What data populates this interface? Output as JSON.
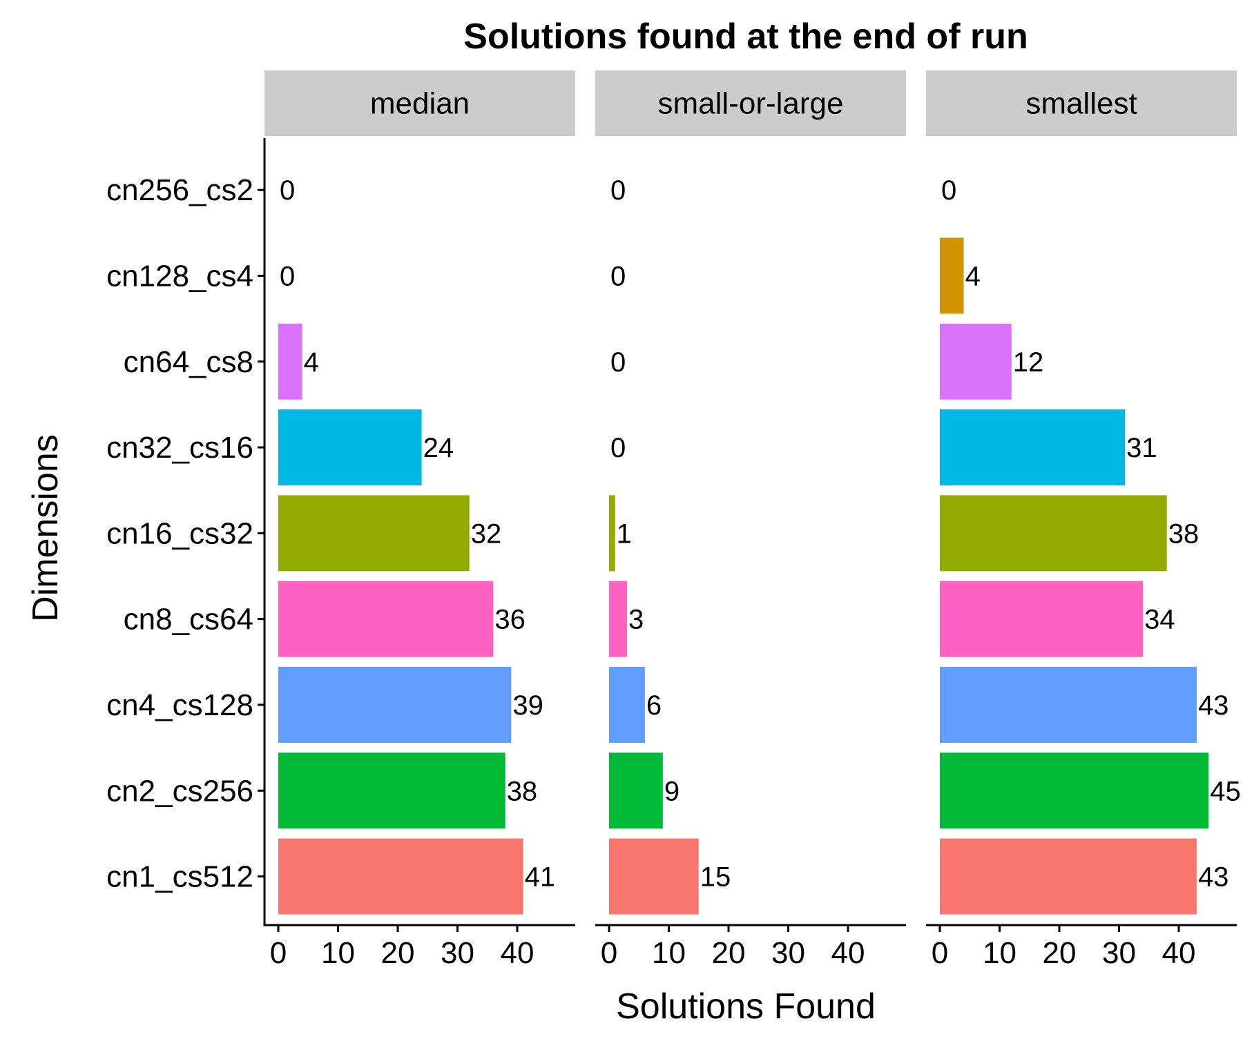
{
  "chart_data": {
    "type": "bar",
    "orientation": "horizontal",
    "title": "Solutions found at the end of run",
    "xlabel": "Solutions Found",
    "ylabel": "Dimensions",
    "xlim": [
      0,
      48
    ],
    "x_ticks": [
      "0",
      "10",
      "20",
      "30",
      "40"
    ],
    "grid": false,
    "categories": [
      "cn256_cs2",
      "cn128_cs4",
      "cn64_cs8",
      "cn32_cs16",
      "cn16_cs32",
      "cn8_cs64",
      "cn4_cs128",
      "cn2_cs256",
      "cn1_cs512"
    ],
    "colors": [
      "#A3A500",
      "#D39200",
      "#DB72FB",
      "#00B9E3",
      "#93AA00",
      "#FF61C3",
      "#619CFF",
      "#00BA38",
      "#F8766D"
    ],
    "panels": [
      {
        "name": "median",
        "values": [
          0,
          0,
          4,
          24,
          32,
          36,
          39,
          38,
          41
        ]
      },
      {
        "name": "small-or-large",
        "values": [
          0,
          0,
          0,
          0,
          1,
          3,
          6,
          9,
          15
        ]
      },
      {
        "name": "smallest",
        "values": [
          0,
          4,
          12,
          31,
          38,
          34,
          43,
          45,
          43
        ]
      }
    ]
  }
}
